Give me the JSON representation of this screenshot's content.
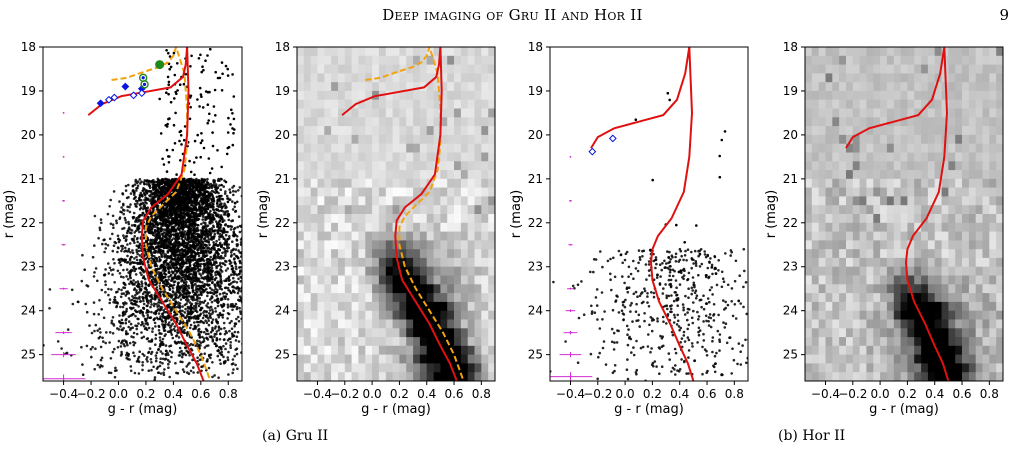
{
  "header": {
    "running_head": "Deep imaging of Gru II and Hor II",
    "page_number": "9"
  },
  "captions": {
    "a": "(a) Gru II",
    "b": "(b) Hor II"
  },
  "colors": {
    "isochrone": "#e01010",
    "fiducial": "#f2a20d",
    "bhb": "#0a16e0",
    "error_bars": "#d22ed2",
    "points": "#000000",
    "rrlyrae": "#1e8a1e"
  },
  "chart_data": [
    {
      "type": "scatter",
      "panel": "Gru II scatter",
      "xlabel": "g - r (mag)",
      "ylabel": "r (mag)",
      "xlim": [
        -0.55,
        0.9
      ],
      "ylim": [
        25.6,
        18.0
      ],
      "y_inverted": true,
      "xticks": [
        -0.4,
        -0.2,
        0.0,
        0.2,
        0.4,
        0.6,
        0.8
      ],
      "xtick_labels": [
        "−0.4",
        "−0.2",
        "0.0",
        "0.2",
        "0.4",
        "0.6",
        "0.8"
      ],
      "yticks": [
        18,
        19,
        20,
        21,
        22,
        23,
        24,
        25
      ],
      "yticklabels": [
        "18",
        "19",
        "20",
        "21",
        "22",
        "23",
        "24",
        "25"
      ],
      "isochrone": {
        "x": [
          -0.22,
          -0.12,
          0.02,
          0.2,
          0.38,
          0.47,
          0.49,
          0.5,
          0.51,
          0.5,
          0.46,
          0.36,
          0.24,
          0.18,
          0.17,
          0.18,
          0.22,
          0.32,
          0.42,
          0.5,
          0.57,
          0.62
        ],
        "y": [
          19.55,
          19.3,
          19.12,
          19.02,
          18.92,
          18.68,
          18.4,
          18.0,
          19.0,
          20.0,
          20.9,
          21.35,
          21.65,
          21.95,
          22.3,
          22.8,
          23.3,
          23.8,
          24.3,
          24.8,
          25.2,
          25.6
        ]
      },
      "fiducial": {
        "x": [
          -0.05,
          0.06,
          0.2,
          0.3,
          0.36,
          0.4,
          0.42,
          0.48,
          0.5,
          0.5,
          0.48,
          0.42,
          0.32,
          0.24,
          0.2,
          0.2,
          0.24,
          0.32,
          0.42,
          0.52,
          0.6,
          0.67
        ],
        "y": [
          18.75,
          18.7,
          18.55,
          18.45,
          18.35,
          18.2,
          18.0,
          18.6,
          19.4,
          20.2,
          20.8,
          21.3,
          21.6,
          21.85,
          22.1,
          22.5,
          23.0,
          23.5,
          24.0,
          24.5,
          25.0,
          25.6
        ]
      },
      "bhb_filled": {
        "x": [
          -0.13,
          0.05,
          0.17
        ],
        "y": [
          19.28,
          18.9,
          18.95
        ]
      },
      "bhb_open": {
        "x": [
          -0.07,
          -0.03,
          0.11,
          0.17
        ],
        "y": [
          19.2,
          19.15,
          19.1,
          19.05
        ]
      },
      "rrlyrae": {
        "x": [
          0.3
        ],
        "y": [
          18.4
        ]
      },
      "green_open": {
        "x": [
          0.18,
          0.19
        ],
        "y": [
          18.7,
          18.85
        ]
      },
      "error_bars": {
        "x": [
          -0.4,
          -0.4,
          -0.4,
          -0.4,
          -0.4,
          -0.4,
          -0.4,
          -0.4
        ],
        "y": [
          19.5,
          20.5,
          21.5,
          22.5,
          23.5,
          24.5,
          25.0,
          25.55
        ],
        "xerr": [
          0.005,
          0.005,
          0.01,
          0.015,
          0.03,
          0.06,
          0.09,
          0.16
        ],
        "yerr": [
          0.005,
          0.005,
          0.005,
          0.01,
          0.02,
          0.03,
          0.06,
          0.1
        ]
      },
      "n_field_points": 5200,
      "cloud_center_x": 0.45,
      "spread_x": 0.28
    },
    {
      "type": "heatmap",
      "panel": "Gru II hess",
      "xlabel": "g - r (mag)",
      "ylabel": "r (mag)",
      "xlim": [
        -0.55,
        0.9
      ],
      "ylim": [
        25.6,
        18.0
      ],
      "y_inverted": true,
      "xticks": [
        -0.4,
        -0.2,
        0.0,
        0.2,
        0.4,
        0.6,
        0.8
      ],
      "xtick_labels": [
        "−0.4",
        "−0.2",
        "0.0",
        "0.2",
        "0.4",
        "0.6",
        "0.8"
      ],
      "yticks": [
        18,
        19,
        20,
        21,
        22,
        23,
        24,
        25
      ],
      "yticklabels": [
        "18",
        "19",
        "20",
        "21",
        "22",
        "23",
        "24",
        "25"
      ],
      "background_gray": 218,
      "isochrone": {
        "x": [
          -0.22,
          -0.12,
          0.02,
          0.2,
          0.38,
          0.47,
          0.49,
          0.5,
          0.51,
          0.5,
          0.46,
          0.36,
          0.24,
          0.18,
          0.17,
          0.18,
          0.22,
          0.32,
          0.42,
          0.5,
          0.57,
          0.62
        ],
        "y": [
          19.55,
          19.3,
          19.12,
          19.02,
          18.92,
          18.68,
          18.4,
          18.0,
          19.0,
          20.0,
          20.9,
          21.35,
          21.65,
          21.95,
          22.3,
          22.8,
          23.3,
          23.8,
          24.3,
          24.8,
          25.2,
          25.6
        ]
      },
      "fiducial": {
        "x": [
          -0.05,
          0.06,
          0.2,
          0.3,
          0.36,
          0.4,
          0.42,
          0.48,
          0.5,
          0.5,
          0.48,
          0.42,
          0.32,
          0.24,
          0.2,
          0.2,
          0.24,
          0.32,
          0.42,
          0.52,
          0.6,
          0.67
        ],
        "y": [
          18.75,
          18.7,
          18.55,
          18.45,
          18.35,
          18.2,
          18.0,
          18.6,
          19.4,
          20.2,
          20.8,
          21.3,
          21.6,
          21.85,
          22.1,
          22.5,
          23.0,
          23.5,
          24.0,
          24.5,
          25.0,
          25.6
        ]
      },
      "main_sequence_start": 22.0,
      "peak_width_x": 0.16
    },
    {
      "type": "scatter",
      "panel": "Hor II scatter",
      "xlabel": "g - r (mag)",
      "ylabel": "r (mag)",
      "xlim": [
        -0.55,
        0.9
      ],
      "ylim": [
        25.6,
        18.0
      ],
      "y_inverted": true,
      "xticks": [
        -0.4,
        -0.2,
        0.0,
        0.2,
        0.4,
        0.6,
        0.8
      ],
      "xtick_labels": [
        "−0.4",
        "−0.2",
        "0.0",
        "0.2",
        "0.4",
        "0.6",
        "0.8"
      ],
      "yticks": [
        18,
        19,
        20,
        21,
        22,
        23,
        24,
        25
      ],
      "yticklabels": [
        "18",
        "19",
        "20",
        "21",
        "22",
        "23",
        "24",
        "25"
      ],
      "isochrone": {
        "x": [
          -0.25,
          -0.2,
          -0.08,
          0.1,
          0.28,
          0.38,
          0.44,
          0.47,
          0.49,
          0.47,
          0.43,
          0.34,
          0.24,
          0.2,
          0.19,
          0.2,
          0.25,
          0.33,
          0.4,
          0.46,
          0.5
        ],
        "y": [
          20.3,
          20.05,
          19.85,
          19.7,
          19.55,
          19.2,
          18.6,
          18.0,
          19.5,
          20.5,
          21.3,
          21.9,
          22.3,
          22.6,
          22.9,
          23.3,
          23.8,
          24.3,
          24.8,
          25.2,
          25.6
        ]
      },
      "bhb_open": {
        "x": [
          -0.24,
          -0.09
        ],
        "y": [
          20.38,
          20.08
        ]
      },
      "error_bars": {
        "x": [
          -0.4,
          -0.4,
          -0.4,
          -0.4,
          -0.4,
          -0.4,
          -0.4,
          -0.4
        ],
        "y": [
          20.5,
          21.5,
          22.5,
          23.5,
          24.0,
          24.5,
          25.0,
          25.5
        ],
        "xerr": [
          0.005,
          0.01,
          0.015,
          0.025,
          0.035,
          0.05,
          0.08,
          0.16
        ],
        "yerr": [
          0.005,
          0.005,
          0.01,
          0.02,
          0.03,
          0.04,
          0.06,
          0.1
        ]
      },
      "n_field_points": 560,
      "cloud_center_x": 0.35,
      "spread_x": 0.3
    },
    {
      "type": "heatmap",
      "panel": "Hor II hess",
      "xlabel": "g - r (mag)",
      "ylabel": "r (mag)",
      "xlim": [
        -0.55,
        0.9
      ],
      "ylim": [
        25.6,
        18.0
      ],
      "y_inverted": true,
      "xticks": [
        -0.4,
        -0.2,
        0.0,
        0.2,
        0.4,
        0.6,
        0.8
      ],
      "xtick_labels": [
        "−0.4",
        "−0.2",
        "0.0",
        "0.2",
        "0.4",
        "0.6",
        "0.8"
      ],
      "yticks": [
        18,
        19,
        20,
        21,
        22,
        23,
        24,
        25
      ],
      "yticklabels": [
        "18",
        "19",
        "20",
        "21",
        "22",
        "23",
        "24",
        "25"
      ],
      "background_gray": 195,
      "isochrone": {
        "x": [
          -0.25,
          -0.2,
          -0.08,
          0.1,
          0.28,
          0.38,
          0.44,
          0.47,
          0.49,
          0.47,
          0.43,
          0.34,
          0.24,
          0.2,
          0.19,
          0.2,
          0.25,
          0.33,
          0.4,
          0.46,
          0.5
        ],
        "y": [
          20.3,
          20.05,
          19.85,
          19.7,
          19.55,
          19.2,
          18.6,
          18.0,
          19.5,
          20.5,
          21.3,
          21.9,
          22.3,
          22.6,
          22.9,
          23.3,
          23.8,
          24.3,
          24.8,
          25.2,
          25.6
        ]
      },
      "main_sequence_start": 22.8,
      "peak_width_x": 0.14
    }
  ]
}
